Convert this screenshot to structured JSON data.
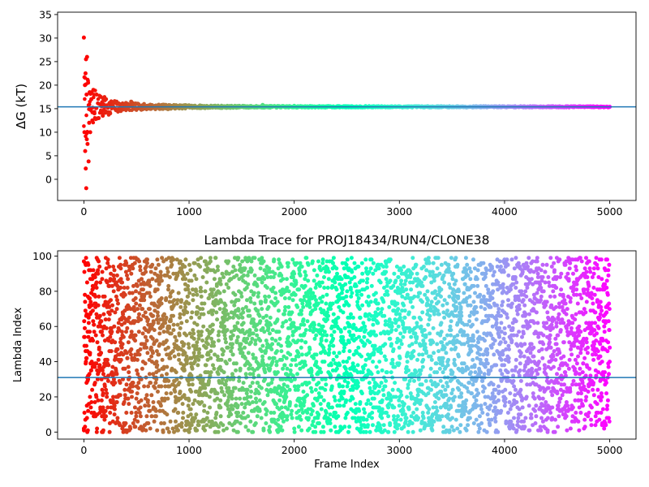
{
  "chart_data": [
    {
      "type": "scatter",
      "title": "",
      "xlabel": "",
      "ylabel": "ΔG (kT)",
      "xlim": [
        -250,
        5250
      ],
      "ylim": [
        -4.5,
        35.5
      ],
      "xticks": [
        0,
        1000,
        2000,
        3000,
        4000,
        5000
      ],
      "yticks": [
        0,
        5,
        10,
        15,
        20,
        25,
        30,
        35
      ],
      "reference_line": 15.4,
      "colormap": "rainbow (red at frame 0 to violet at frame 5000)",
      "series": [
        {
          "description": "running free energy estimate per frame",
          "x": [
            0,
            5,
            10,
            12,
            15,
            18,
            20,
            22,
            25,
            28,
            30,
            35,
            40,
            45,
            50,
            55,
            60,
            70,
            80,
            90,
            100,
            120,
            140,
            160,
            180,
            200,
            250,
            300,
            350,
            400,
            450,
            500,
            600,
            700,
            800,
            1000,
            1200,
            1500,
            1700,
            2000,
            2500,
            3000,
            3500,
            4000,
            4500,
            5000
          ],
          "y": [
            30.1,
            10.0,
            20.0,
            6.0,
            22.5,
            2.3,
            25.5,
            -1.9,
            18.0,
            8.5,
            26.0,
            7.5,
            20.5,
            3.8,
            12.0,
            18.5,
            10.0,
            17.0,
            12.5,
            19.0,
            14.0,
            18.0,
            13.0,
            17.5,
            13.5,
            16.8,
            14.0,
            16.5,
            14.5,
            16.2,
            16.5,
            15.0,
            15.6,
            15.3,
            14.9,
            15.7,
            15.2,
            15.4,
            15.8,
            15.6,
            15.5,
            15.4,
            15.4,
            15.4,
            15.4,
            15.4
          ]
        }
      ]
    },
    {
      "type": "scatter",
      "title": "Lambda Trace for PROJ18434/RUN4/CLONE38",
      "xlabel": "Frame Index",
      "ylabel": "Lambda Index",
      "xlim": [
        -250,
        5250
      ],
      "ylim": [
        -4,
        103
      ],
      "xticks": [
        0,
        1000,
        2000,
        3000,
        4000,
        5000
      ],
      "yticks": [
        0,
        20,
        40,
        60,
        80,
        100
      ],
      "reference_line": 31,
      "colormap": "rainbow (red at frame 0 to violet at frame 5000)",
      "series": [
        {
          "description": "lambda index per frame, sampled roughly uniformly over 0-99",
          "x_range": [
            0,
            5000
          ],
          "y_range": [
            0,
            99
          ],
          "x": [
            0,
            40,
            120,
            260,
            400,
            600,
            800,
            1000,
            1250,
            1500,
            1750,
            2000,
            2250,
            2500,
            2750,
            3000,
            3250,
            3500,
            3750,
            4000,
            4250,
            4500,
            4750,
            5000
          ],
          "y": [
            97,
            12,
            85,
            33,
            64,
            5,
            91,
            48,
            22,
            77,
            58,
            2,
            70,
            40,
            61,
            15,
            88,
            30,
            53,
            96,
            8,
            44,
            67,
            48
          ]
        }
      ]
    }
  ]
}
